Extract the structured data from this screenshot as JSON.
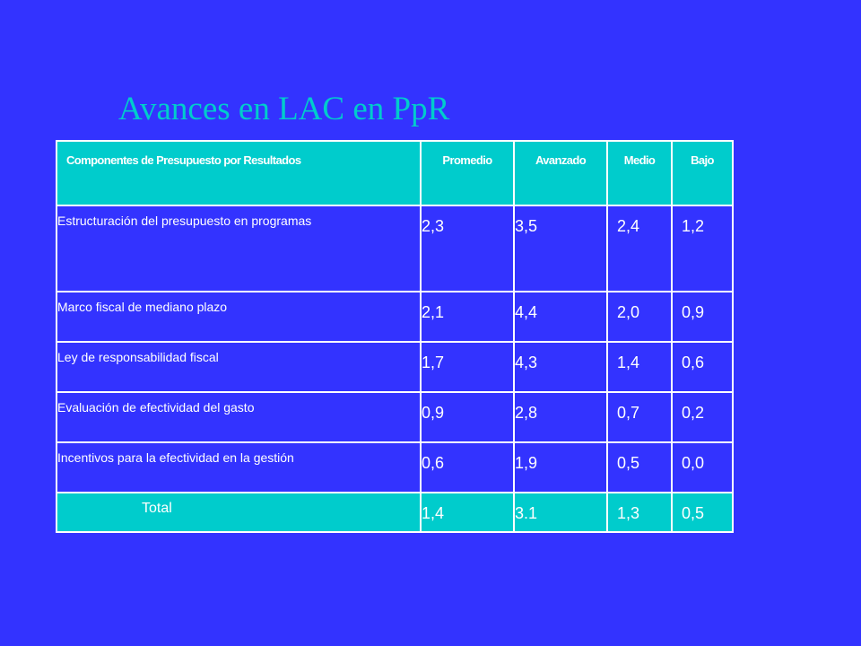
{
  "title": "Avances en LAC en PpR",
  "table": {
    "headers": [
      "Componentes de Presupuesto por Resultados",
      "Promedio",
      "Avanzado",
      "Medio",
      "Bajo"
    ],
    "rows": [
      {
        "label": "Estructuración del presupuesto en programas",
        "promedio": "2,3",
        "avanzado": "3,5",
        "medio": "2,4",
        "bajo": "1,2"
      },
      {
        "label": "Marco fiscal de mediano plazo",
        "promedio": "2,1",
        "avanzado": "4,4",
        "medio": "2,0",
        "bajo": "0,9"
      },
      {
        "label": "Ley de responsabilidad fiscal",
        "promedio": "1,7",
        "avanzado": "4,3",
        "medio": "1,4",
        "bajo": "0,6"
      },
      {
        "label": "Evaluación de efectividad del gasto",
        "promedio": "0,9",
        "avanzado": "2,8",
        "medio": "0,7",
        "bajo": "0,2"
      },
      {
        "label": "Incentivos para la efectividad en la gestión",
        "promedio": "0,6",
        "avanzado": "1,9",
        "medio": "0,5",
        "bajo": "0,0"
      }
    ],
    "total": {
      "label": "Total",
      "promedio": "1,4",
      "avanzado": "3.1",
      "medio": "1,3",
      "bajo": "0,5"
    }
  },
  "colors": {
    "background": "#3333ff",
    "accent": "#00cccc",
    "text": "#ffffff"
  }
}
